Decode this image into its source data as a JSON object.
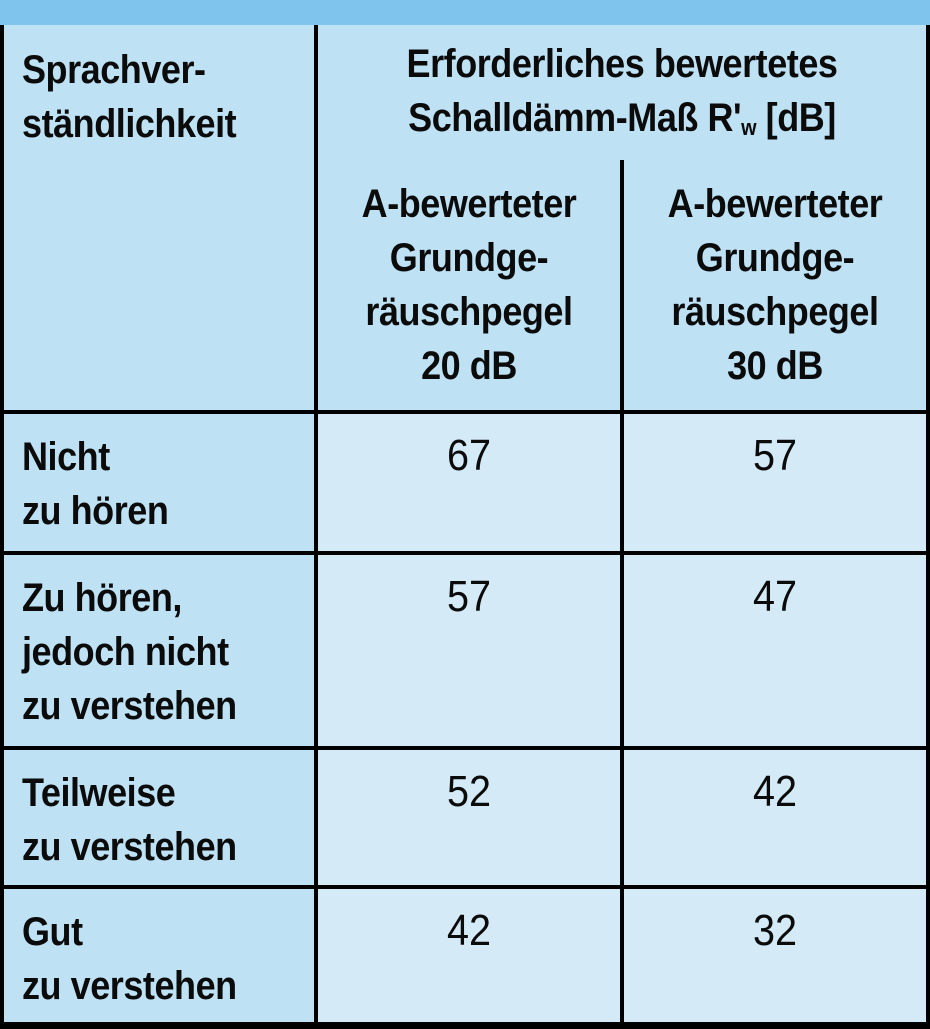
{
  "colors": {
    "top_bar": "#7ec4ec",
    "header_bg": "#bee2f4",
    "data_cell_bg": "#d4eaf7",
    "border": "#000000",
    "text": "#0b0b0b"
  },
  "table": {
    "row_axis_header": "Sprachver-\nständlichkeit",
    "col_group_header": {
      "line1": "Erforderliches bewertetes",
      "line2_pre": "Schalldämm-Maß R'",
      "line2_sub": "w",
      "line2_post": " [dB]"
    },
    "columns": [
      {
        "label": "A-bewerteter\nGrundge-\nräuschpegel\n20 dB"
      },
      {
        "label": "A-bewerteter\nGrundge-\nräuschpegel\n30 dB"
      }
    ],
    "rows": [
      {
        "label": "Nicht\nzu hören",
        "values": [
          "67",
          "57"
        ]
      },
      {
        "label": "Zu hören,\njedoch nicht\nzu verstehen",
        "values": [
          "57",
          "47"
        ]
      },
      {
        "label": "Teilweise\nzu verstehen",
        "values": [
          "52",
          "42"
        ]
      },
      {
        "label": "Gut\nzu verstehen",
        "values": [
          "42",
          "32"
        ]
      }
    ]
  },
  "chart_data": {
    "type": "table",
    "title": "Erforderliches bewertetes Schalldämm-Maß R'w [dB]",
    "row_axis_label": "Sprachverständlichkeit",
    "column_headers": [
      "A-bewerteter Grundgeräuschpegel 20 dB",
      "A-bewerteter Grundgeräuschpegel 30 dB"
    ],
    "rows": [
      {
        "sprachverstaendlichkeit": "Nicht zu hören",
        "rw_grundgeraeuschpegel_20dB": 67,
        "rw_grundgeraeuschpegel_30dB": 57
      },
      {
        "sprachverstaendlichkeit": "Zu hören, jedoch nicht zu verstehen",
        "rw_grundgeraeuschpegel_20dB": 57,
        "rw_grundgeraeuschpegel_30dB": 47
      },
      {
        "sprachverstaendlichkeit": "Teilweise zu verstehen",
        "rw_grundgeraeuschpegel_20dB": 52,
        "rw_grundgeraeuschpegel_30dB": 42
      },
      {
        "sprachverstaendlichkeit": "Gut zu verstehen",
        "rw_grundgeraeuschpegel_20dB": 42,
        "rw_grundgeraeuschpegel_30dB": 32
      }
    ]
  }
}
